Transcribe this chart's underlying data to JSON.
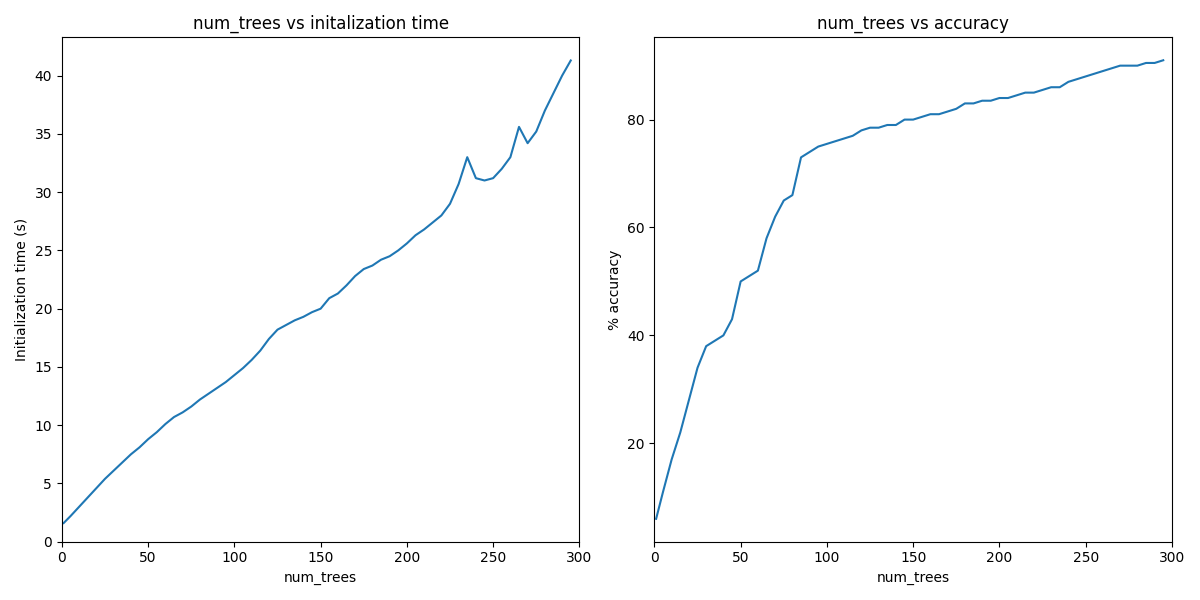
{
  "title1": "num_trees vs initalization time",
  "title2": "num_trees vs accuracy",
  "xlabel1": "num_trees",
  "ylabel1": "Initialization time (s)",
  "xlabel2": "num_trees",
  "ylabel2": "% accuracy",
  "line_color": "#1f77b4",
  "trees1": [
    1,
    5,
    10,
    15,
    20,
    25,
    30,
    35,
    40,
    45,
    50,
    55,
    60,
    65,
    70,
    75,
    80,
    85,
    90,
    95,
    100,
    105,
    110,
    115,
    120,
    125,
    130,
    135,
    140,
    145,
    150,
    155,
    160,
    165,
    170,
    175,
    180,
    185,
    190,
    195,
    200,
    205,
    210,
    215,
    220,
    225,
    230,
    235,
    240,
    245,
    250,
    255,
    260,
    265,
    270,
    275,
    280,
    285,
    290,
    295
  ],
  "time1": [
    1.6,
    2.2,
    3.0,
    3.8,
    4.6,
    5.4,
    6.1,
    6.8,
    7.5,
    8.1,
    8.8,
    9.4,
    10.1,
    10.7,
    11.1,
    11.6,
    12.2,
    12.7,
    13.2,
    13.7,
    14.3,
    14.9,
    15.6,
    16.4,
    17.4,
    18.2,
    18.6,
    19.0,
    19.3,
    19.7,
    20.0,
    20.9,
    21.3,
    22.0,
    22.8,
    23.4,
    23.7,
    24.2,
    24.5,
    25.0,
    25.6,
    26.3,
    26.8,
    27.4,
    28.0,
    29.0,
    30.7,
    33.0,
    31.2,
    31.0,
    31.2,
    32.0,
    33.0,
    35.6,
    34.2,
    35.2,
    37.0,
    38.5,
    40.0,
    41.3
  ],
  "trees2": [
    1,
    5,
    10,
    15,
    20,
    25,
    30,
    35,
    40,
    45,
    50,
    55,
    60,
    65,
    70,
    75,
    80,
    85,
    90,
    95,
    100,
    105,
    110,
    115,
    120,
    125,
    130,
    135,
    140,
    145,
    150,
    155,
    160,
    165,
    170,
    175,
    180,
    185,
    190,
    195,
    200,
    205,
    210,
    215,
    220,
    225,
    230,
    235,
    240,
    245,
    250,
    255,
    260,
    265,
    270,
    275,
    280,
    285,
    290,
    295
  ],
  "acc2": [
    6,
    11,
    17,
    22,
    28,
    34,
    38,
    39,
    40,
    43,
    50,
    51,
    52,
    58,
    62,
    65,
    66,
    73,
    74,
    75,
    75.5,
    76,
    76.5,
    77,
    78,
    78.5,
    78.5,
    79,
    79,
    80,
    80,
    80.5,
    81,
    81,
    81.5,
    82,
    83,
    83,
    83.5,
    83.5,
    84,
    84,
    84.5,
    85,
    85,
    85.5,
    86,
    86,
    87,
    87.5,
    88,
    88.5,
    89,
    89.5,
    90,
    90,
    90,
    90.5,
    90.5,
    91
  ]
}
